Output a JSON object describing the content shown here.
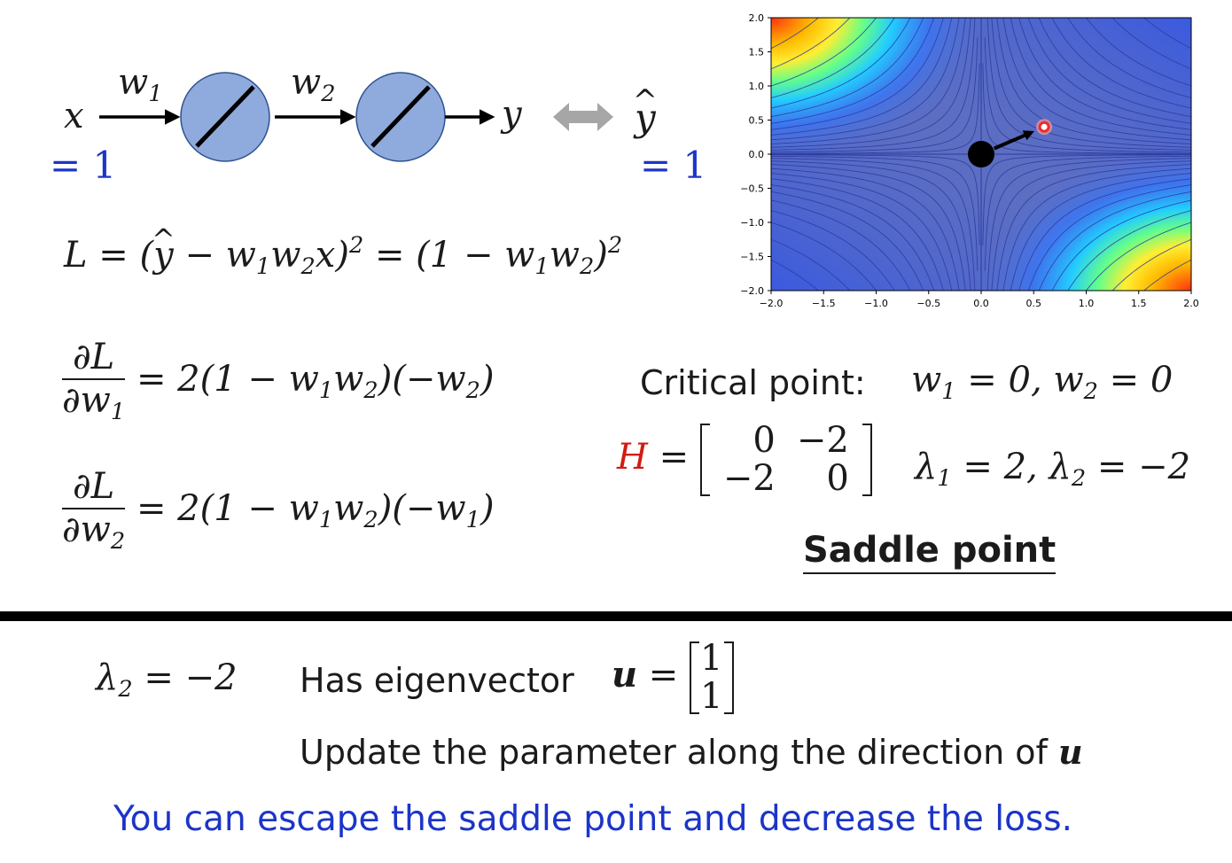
{
  "network": {
    "x_label": "x",
    "x_value": "= 1",
    "w1_base": "w",
    "w1_sub": "1",
    "w2_base": "w",
    "w2_sub": "2",
    "y_label": "y",
    "y_hat": "y",
    "y_hat_value": "= 1"
  },
  "loss": {
    "lhs": "L = (",
    "yhat": "y",
    "part1": " − w",
    "sub1": "1",
    "part2": "w",
    "sub2": "2",
    "part3": "x)",
    "sup": "2",
    "part4": " = (1 − w",
    "sub3": "1",
    "part5": "w",
    "sub4": "2",
    "part6": ")",
    "sup2": "2"
  },
  "gradients": [
    {
      "num": "∂L",
      "den_base": "∂w",
      "den_sub": "1",
      "rhs_a": "= 2(1 − w",
      "s1": "1",
      "rhs_b": "w",
      "s2": "2",
      "rhs_c": ")(−w",
      "s3": "2",
      "rhs_d": ")"
    },
    {
      "num": "∂L",
      "den_base": "∂w",
      "den_sub": "2",
      "rhs_a": "= 2(1 − w",
      "s1": "1",
      "rhs_b": "w",
      "s2": "2",
      "rhs_c": ")(−w",
      "s3": "1",
      "rhs_d": ")"
    }
  ],
  "critical": {
    "label": "Critical point:",
    "eq_a": "w",
    "s1": "1",
    "eq_b": " = 0, w",
    "s2": "2",
    "eq_c": " = 0"
  },
  "hessian": {
    "symbol": "H",
    "equals": " =",
    "matrix": [
      [
        "0",
        "−2"
      ],
      [
        "−2",
        "0"
      ]
    ],
    "eig_a": "λ",
    "s1": "1",
    "eig_b": " = 2, λ",
    "s2": "2",
    "eig_c": " = −2"
  },
  "saddle_label": "Saddle point",
  "bottom": {
    "lambda_a": "λ",
    "lambda_sub": "2",
    "lambda_b": " = −2",
    "has_eigenvector": "Has eigenvector",
    "u_symbol": "u",
    "u_equals": " =",
    "u_vector": [
      "1",
      "1"
    ],
    "update_text": "Update the parameter along the direction of",
    "update_u": "u",
    "conclusion": "You can escape the saddle point and decrease the loss."
  },
  "plot": {
    "x_ticks": [
      "−2.0",
      "−1.5",
      "−1.0",
      "−0.5",
      "0.0",
      "0.5",
      "1.0",
      "1.5",
      "2.0"
    ],
    "y_ticks": [
      "2.0",
      "1.5",
      "1.0",
      "0.5",
      "0.0",
      "−0.5",
      "−1.0",
      "−1.5",
      "−2.0"
    ],
    "saddle_point": [
      0,
      0
    ],
    "escape_point": [
      0.6,
      0.4
    ],
    "colors": {
      "background": "#5e6fc0",
      "contour": "#2d3a9e",
      "saddle": "#000000",
      "escape": "#ee2a2a"
    }
  }
}
